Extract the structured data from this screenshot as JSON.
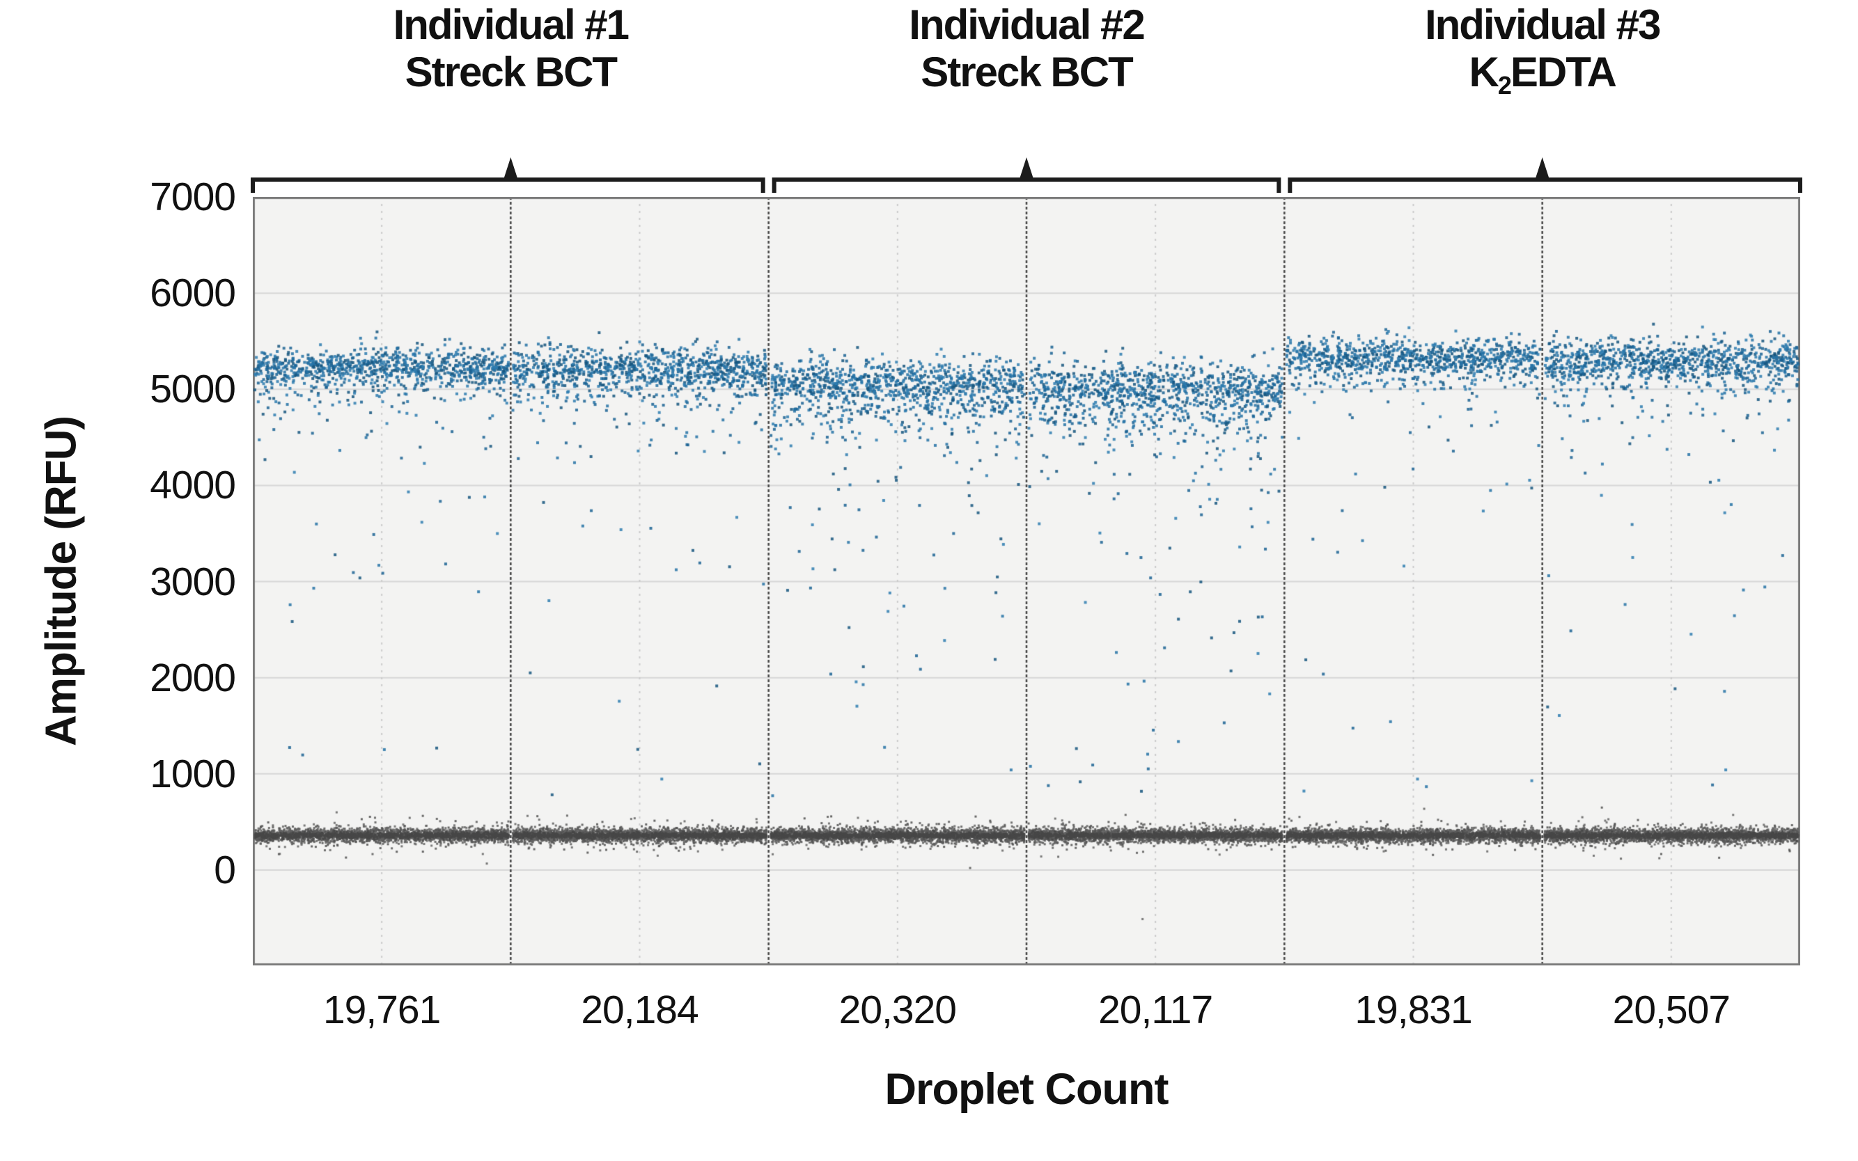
{
  "figure": {
    "y_axis_title": "Amplitude (RFU)",
    "x_axis_title": "Droplet Count",
    "group_titles": [
      {
        "line1": "Individual #1",
        "line2_pre": "Streck BCT",
        "line2_sub": "",
        "line2_post": ""
      },
      {
        "line1": "Individual #2",
        "line2_pre": "Streck BCT",
        "line2_sub": "",
        "line2_post": ""
      },
      {
        "line1": "Individual #3",
        "line2_pre": "K",
        "line2_sub": "2",
        "line2_post": "EDTA"
      }
    ]
  },
  "chart_data": {
    "type": "scatter",
    "title": "",
    "xlabel": "Droplet Count",
    "ylabel": "Amplitude (RFU)",
    "ylim": [
      -1000,
      7000
    ],
    "yticks": [
      "7000",
      "6000",
      "5000",
      "4000",
      "3000",
      "2000",
      "1000",
      "0"
    ],
    "ytick_values": [
      7000,
      6000,
      5000,
      4000,
      3000,
      2000,
      1000,
      0
    ],
    "grid": "horizontal major, light dotted vertical per-sample",
    "legend": "none",
    "groups": [
      {
        "title": "Individual #1",
        "tube": "Streck BCT",
        "sample_indices": [
          0,
          1
        ]
      },
      {
        "title": "Individual #2",
        "tube": "Streck BCT",
        "sample_indices": [
          2,
          3
        ]
      },
      {
        "title": "Individual #3",
        "tube": "K2EDTA",
        "sample_indices": [
          4,
          5
        ]
      }
    ],
    "samples": [
      {
        "droplet_count_label": "19,761",
        "droplet_count": 19761,
        "positive_band_mean_rfu": 5230,
        "positive_band_sd_rfu": 105,
        "rain_count": 70,
        "deep_rain_count": 12
      },
      {
        "droplet_count_label": "20,184",
        "droplet_count": 20184,
        "positive_band_mean_rfu": 5210,
        "positive_band_sd_rfu": 112,
        "rain_count": 80,
        "deep_rain_count": 14
      },
      {
        "droplet_count_label": "20,320",
        "droplet_count": 20320,
        "positive_band_mean_rfu": 5060,
        "positive_band_sd_rfu": 128,
        "rain_count": 150,
        "deep_rain_count": 20
      },
      {
        "droplet_count_label": "20,117",
        "droplet_count": 20117,
        "positive_band_mean_rfu": 5010,
        "positive_band_sd_rfu": 138,
        "rain_count": 160,
        "deep_rain_count": 22
      },
      {
        "droplet_count_label": "19,831",
        "droplet_count": 19831,
        "positive_band_mean_rfu": 5330,
        "positive_band_sd_rfu": 100,
        "rain_count": 55,
        "deep_rain_count": 10
      },
      {
        "droplet_count_label": "20,507",
        "droplet_count": 20507,
        "positive_band_mean_rfu": 5290,
        "positive_band_sd_rfu": 112,
        "rain_count": 65,
        "deep_rain_count": 12
      }
    ],
    "negative_band": {
      "mean_rfu": 360,
      "sd_rfu": 38
    },
    "stray_points": [
      {
        "sample_index": 3,
        "rfu": -510
      }
    ],
    "colors": {
      "positive_droplets": "#2472a6",
      "positive_palette": [
        "#1b6394",
        "#2472a6",
        "#2e7cb0",
        "#16567f"
      ],
      "negative_droplets": "#565656",
      "negative_palette": [
        "#4f4f4f",
        "#5a5a5a",
        "#646464"
      ],
      "plot_background": "#f3f3f2",
      "gridline": "#d7d7d7",
      "minor_dotted_gridline": "#cccccc",
      "sample_divider": "#454545",
      "frame": "#7b7b7b",
      "bracket": "#1c1c1c",
      "text": "#111111"
    }
  }
}
